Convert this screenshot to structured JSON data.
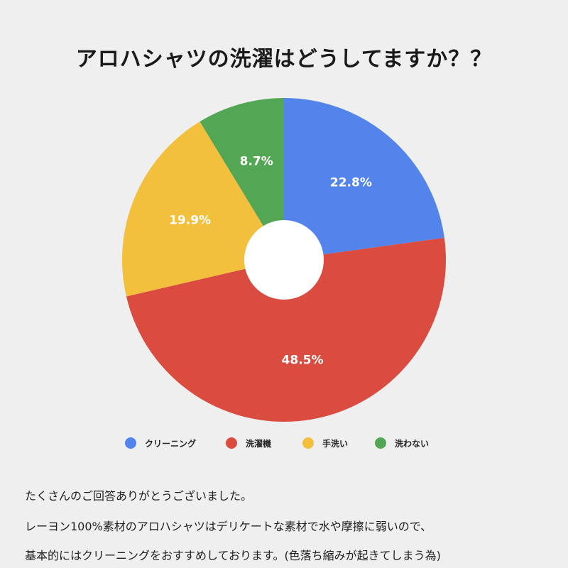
{
  "chart_data": {
    "type": "pie",
    "title": "アロハシャツの洗濯はどうしてますか？？",
    "categories": [
      "クリーニング",
      "洗濯機",
      "手洗い",
      "洗わない"
    ],
    "values": [
      22.8,
      48.5,
      19.9,
      8.7
    ],
    "labels": [
      "22.8%",
      "48.5%",
      "19.9%",
      "8.7%"
    ],
    "colors": [
      "#5384ec",
      "#d94c3f",
      "#f2c03c",
      "#53a653"
    ],
    "donut": true,
    "legend_position": "bottom"
  },
  "notes": {
    "line1": "たくさんのご回答ありがとうございました。",
    "line2": "レーヨン100%素材のアロハシャツはデリケートな素材で水や摩擦に弱いので、",
    "line3": "基本的にはクリーニングをおすすめしております。(色落ち縮みが起きてしまう為)"
  }
}
